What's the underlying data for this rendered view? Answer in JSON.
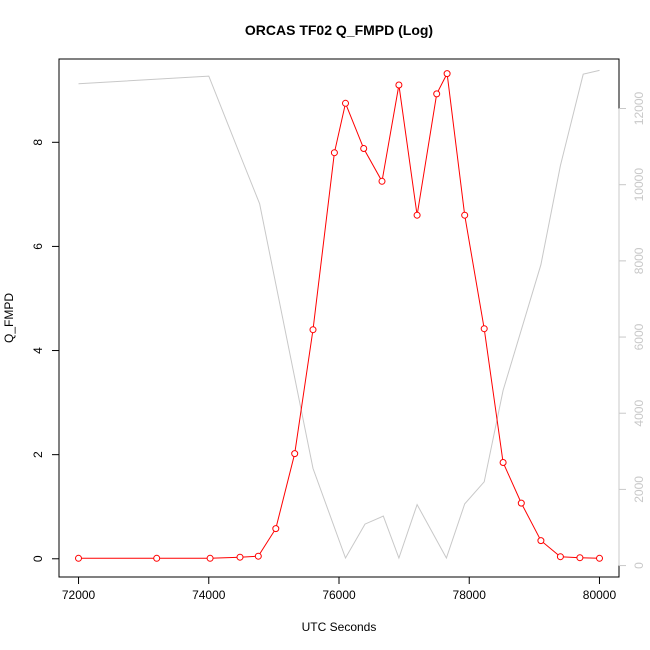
{
  "chart_data": {
    "type": "line",
    "title": "ORCAS TF02 Q_FMPD (Log)",
    "xlabel": "UTC Seconds",
    "ylabel": "Q_FMPD",
    "xlim": [
      71700,
      80300
    ],
    "ylim": [
      -0.35,
      9.6
    ],
    "y2lim": [
      -300,
      13300
    ],
    "x_ticks": [
      72000,
      74000,
      76000,
      78000,
      80000
    ],
    "y_ticks": [
      0,
      2,
      4,
      6,
      8
    ],
    "y2_ticks": [
      0,
      2000,
      4000,
      6000,
      8000,
      10000,
      12000
    ],
    "series": [
      {
        "axis": "left",
        "color": "#ff0000",
        "style": "line+points",
        "x": [
          72000,
          73200,
          74020,
          74480,
          74760,
          75030,
          75320,
          75600,
          75930,
          76100,
          76380,
          76660,
          76920,
          77200,
          77500,
          77660,
          77930,
          78230,
          78520,
          78800,
          79100,
          79400,
          79700,
          80000
        ],
        "y": [
          0.01,
          0.01,
          0.01,
          0.03,
          0.05,
          0.58,
          2.02,
          4.4,
          7.8,
          8.75,
          7.88,
          7.25,
          9.1,
          6.6,
          8.93,
          9.32,
          6.6,
          4.42,
          1.85,
          1.07,
          0.35,
          0.04,
          0.02,
          0.01
        ]
      },
      {
        "axis": "right",
        "color": "#c8c8c8",
        "style": "line",
        "x": [
          72000,
          74000,
          74500,
          74780,
          75600,
          76100,
          76400,
          76680,
          76920,
          77200,
          77650,
          77930,
          78230,
          78520,
          79100,
          79400,
          79750,
          80000
        ],
        "y": [
          12650,
          12850,
          10700,
          9500,
          2550,
          200,
          1090,
          1300,
          200,
          1600,
          200,
          1620,
          2200,
          4600,
          7900,
          10500,
          12900,
          13000
        ]
      }
    ]
  }
}
